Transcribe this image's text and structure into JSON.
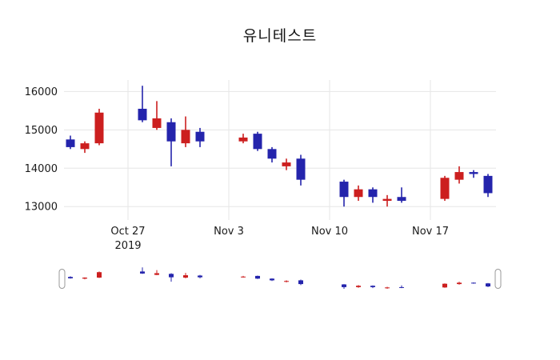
{
  "title": "유니테스트",
  "chart_data": {
    "type": "candlestick",
    "title": "유니테스트",
    "increasing_color": "#cc1f1f",
    "decreasing_color": "#2424ac",
    "grid": true,
    "rangeslider": true,
    "ylim": [
      12650,
      16300
    ],
    "ylabel": "",
    "xlabel": "",
    "x_origin": "2019-10-27",
    "y_ticks": [
      13000,
      14000,
      15000,
      16000
    ],
    "x_ticks": [
      {
        "label": "Oct 27",
        "sublabel": "2019",
        "date": "2019-10-27"
      },
      {
        "label": "Nov 3",
        "sublabel": "",
        "date": "2019-11-03"
      },
      {
        "label": "Nov 10",
        "sublabel": "",
        "date": "2019-11-10"
      },
      {
        "label": "Nov 17",
        "sublabel": "",
        "date": "2019-11-17"
      }
    ],
    "candles": [
      {
        "date": "2019-10-23",
        "open": 14750,
        "high": 14850,
        "low": 14500,
        "close": 14550
      },
      {
        "date": "2019-10-24",
        "open": 14500,
        "high": 14700,
        "low": 14400,
        "close": 14650
      },
      {
        "date": "2019-10-25",
        "open": 14650,
        "high": 15550,
        "low": 14600,
        "close": 15450
      },
      {
        "date": "2019-10-28",
        "open": 15550,
        "high": 16150,
        "low": 15200,
        "close": 15250
      },
      {
        "date": "2019-10-29",
        "open": 15050,
        "high": 15750,
        "low": 15000,
        "close": 15300
      },
      {
        "date": "2019-10-30",
        "open": 15200,
        "high": 15300,
        "low": 14050,
        "close": 14700
      },
      {
        "date": "2019-10-31",
        "open": 14650,
        "high": 15350,
        "low": 14550,
        "close": 15000
      },
      {
        "date": "2019-11-01",
        "open": 14950,
        "high": 15050,
        "low": 14550,
        "close": 14700
      },
      {
        "date": "2019-11-04",
        "open": 14700,
        "high": 14900,
        "low": 14650,
        "close": 14800
      },
      {
        "date": "2019-11-05",
        "open": 14900,
        "high": 14950,
        "low": 14450,
        "close": 14500
      },
      {
        "date": "2019-11-06",
        "open": 14500,
        "high": 14550,
        "low": 14150,
        "close": 14250
      },
      {
        "date": "2019-11-07",
        "open": 14050,
        "high": 14250,
        "low": 13950,
        "close": 14150
      },
      {
        "date": "2019-11-08",
        "open": 14250,
        "high": 14350,
        "low": 13550,
        "close": 13700
      },
      {
        "date": "2019-11-11",
        "open": 13650,
        "high": 13700,
        "low": 13000,
        "close": 13250
      },
      {
        "date": "2019-11-12",
        "open": 13250,
        "high": 13550,
        "low": 13150,
        "close": 13450
      },
      {
        "date": "2019-11-13",
        "open": 13450,
        "high": 13500,
        "low": 13100,
        "close": 13250
      },
      {
        "date": "2019-11-14",
        "open": 13150,
        "high": 13300,
        "low": 13000,
        "close": 13200
      },
      {
        "date": "2019-11-15",
        "open": 13250,
        "high": 13500,
        "low": 13100,
        "close": 13150
      },
      {
        "date": "2019-11-18",
        "open": 13200,
        "high": 13800,
        "low": 13150,
        "close": 13750
      },
      {
        "date": "2019-11-19",
        "open": 13700,
        "high": 14050,
        "low": 13600,
        "close": 13900
      },
      {
        "date": "2019-11-20",
        "open": 13900,
        "high": 13950,
        "low": 13750,
        "close": 13850
      },
      {
        "date": "2019-11-21",
        "open": 13800,
        "high": 13850,
        "low": 13250,
        "close": 13350
      }
    ]
  },
  "colors": {
    "gridline": "#e6e6e6",
    "tick_text": "#1a1a1a",
    "slider_handle_stroke": "#999999"
  }
}
